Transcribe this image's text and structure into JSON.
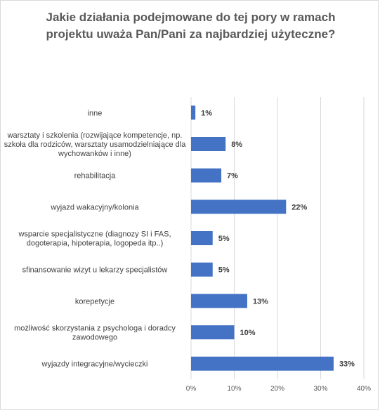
{
  "chart_data": {
    "type": "bar",
    "orientation": "horizontal",
    "title": "Jakie działania podejmowane do tej pory w ramach\nprojektu uważa Pan/Pani za najbardziej użyteczne?",
    "categories": [
      [
        "inne"
      ],
      [
        "warsztaty i szkolenia (rozwijające kompetencje, np.",
        "szkoła dla rodziców, warsztaty usamodzielniające dla",
        "wychowanków i inne)"
      ],
      [
        "rehabilitacja"
      ],
      [
        "wyjazd wakacyjny/kolonia"
      ],
      [
        "wsparcie specjalistyczne (diagnozy SI i FAS,",
        "dogoterapia, hipoterapia, logopeda itp..)"
      ],
      [
        "sfinansowanie wizyt u lekarzy specjalistów"
      ],
      [
        "korepetycje"
      ],
      [
        "możliwość skorzystania z psychologa i doradcy",
        "zawodowego"
      ],
      [
        "wyjazdy integracyjne/wycieczki"
      ]
    ],
    "values": [
      1,
      8,
      7,
      22,
      5,
      5,
      13,
      10,
      33
    ],
    "value_labels": [
      "1%",
      "8%",
      "7%",
      "22%",
      "5%",
      "5%",
      "13%",
      "10%",
      "33%"
    ],
    "xlim": [
      0,
      40
    ],
    "x_ticks": [
      0,
      10,
      20,
      30,
      40
    ],
    "x_tick_labels": [
      "0%",
      "10%",
      "20%",
      "30%",
      "40%"
    ],
    "xlabel": "",
    "ylabel": "",
    "grid": "vertical",
    "legend": "none",
    "bar_color": "#4472c4",
    "grid_color": "#d9d9d9"
  }
}
